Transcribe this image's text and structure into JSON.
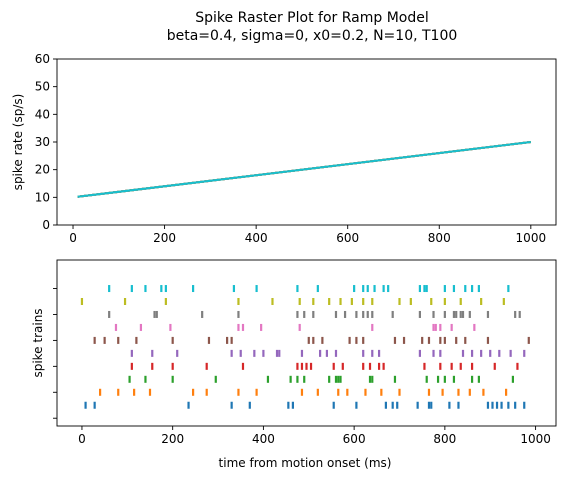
{
  "chart_data": [
    {
      "type": "line",
      "title": "Spike Raster Plot for Ramp Model",
      "subtitle": "beta=0.4, sigma=0, x0=0.2, N=10, T100",
      "xlabel": "",
      "ylabel": "spike rate (sp/s)",
      "xlim": [
        -35,
        1055
      ],
      "ylim": [
        0,
        60
      ],
      "xticks": [
        0,
        200,
        400,
        600,
        800,
        1000
      ],
      "yticks": [
        0,
        10,
        20,
        30,
        40,
        50,
        60
      ],
      "grid": false,
      "colors": [
        "#1f77b4",
        "#ff7f0e",
        "#2ca02c",
        "#d62728",
        "#9467bd",
        "#8c564b",
        "#e377c2",
        "#7f7f7f",
        "#bcbd22",
        "#17becf"
      ],
      "series": [
        {
          "x": [
            10,
            1000
          ],
          "y": [
            10.2,
            30.0
          ]
        },
        {
          "x": [
            10,
            1000
          ],
          "y": [
            10.2,
            30.0
          ]
        },
        {
          "x": [
            10,
            1000
          ],
          "y": [
            10.2,
            30.0
          ]
        },
        {
          "x": [
            10,
            1000
          ],
          "y": [
            10.2,
            30.0
          ]
        },
        {
          "x": [
            10,
            1000
          ],
          "y": [
            10.2,
            30.0
          ]
        },
        {
          "x": [
            10,
            1000
          ],
          "y": [
            10.2,
            30.0
          ]
        },
        {
          "x": [
            10,
            1000
          ],
          "y": [
            10.2,
            30.0
          ]
        },
        {
          "x": [
            10,
            1000
          ],
          "y": [
            10.2,
            30.0
          ]
        },
        {
          "x": [
            10,
            1000
          ],
          "y": [
            10.2,
            30.0
          ]
        },
        {
          "x": [
            10,
            1000
          ],
          "y": [
            10.2,
            30.0
          ]
        }
      ]
    },
    {
      "type": "scatter",
      "title": "",
      "xlabel": "time from motion onset (ms)",
      "ylabel": "spike trains",
      "xlim": [
        -55,
        1045
      ],
      "ylim": [
        -0.6,
        12.2
      ],
      "xticks": [
        0,
        200,
        400,
        600,
        800,
        1000
      ],
      "ytick_count": 6,
      "grid": false,
      "colors": [
        "#1f77b4",
        "#ff7f0e",
        "#2ca02c",
        "#d62728",
        "#9467bd",
        "#8c564b",
        "#e377c2",
        "#7f7f7f",
        "#bcbd22",
        "#17becf"
      ],
      "trains": [
        [
          8,
          28,
          235,
          330,
          370,
          455,
          465,
          555,
          605,
          670,
          685,
          695,
          740,
          765,
          770,
          810,
          830,
          895,
          905,
          915,
          925,
          940,
          955,
          975
        ],
        [
          40,
          80,
          115,
          150,
          245,
          275,
          345,
          385,
          485,
          520,
          565,
          585,
          625,
          660,
          700,
          765,
          795,
          830,
          855,
          885,
          935
        ],
        [
          105,
          140,
          200,
          295,
          410,
          460,
          475,
          490,
          545,
          560,
          565,
          570,
          635,
          640,
          690,
          760,
          785,
          800,
          820,
          860,
          875,
          950
        ],
        [
          110,
          155,
          200,
          275,
          355,
          475,
          485,
          495,
          505,
          555,
          575,
          620,
          635,
          655,
          665,
          755,
          790,
          815,
          835,
          860,
          910,
          960
        ],
        [
          110,
          155,
          210,
          330,
          350,
          380,
          400,
          430,
          435,
          485,
          525,
          540,
          560,
          620,
          640,
          655,
          745,
          775,
          790,
          840,
          860,
          880,
          900,
          920,
          945,
          975
        ],
        [
          28,
          50,
          80,
          120,
          200,
          280,
          320,
          330,
          500,
          510,
          530,
          590,
          605,
          620,
          690,
          710,
          750,
          765,
          790,
          800,
          825,
          845,
          895,
          985
        ],
        [
          75,
          130,
          195,
          345,
          355,
          395,
          480,
          640,
          775,
          780,
          790,
          815,
          865
        ],
        [
          60,
          160,
          165,
          265,
          345,
          475,
          490,
          510,
          560,
          580,
          605,
          620,
          630,
          640,
          685,
          745,
          775,
          800,
          820,
          825,
          835,
          840,
          855,
          895,
          955,
          965
        ],
        [
          0,
          95,
          185,
          345,
          420,
          480,
          510,
          545,
          570,
          595,
          620,
          640,
          700,
          725,
          770,
          800,
          835,
          880,
          930
        ],
        [
          60,
          110,
          140,
          175,
          185,
          245,
          335,
          385,
          475,
          520,
          600,
          620,
          630,
          645,
          665,
          675,
          745,
          755,
          760,
          800,
          820,
          845,
          860,
          875,
          940
        ]
      ]
    }
  ]
}
